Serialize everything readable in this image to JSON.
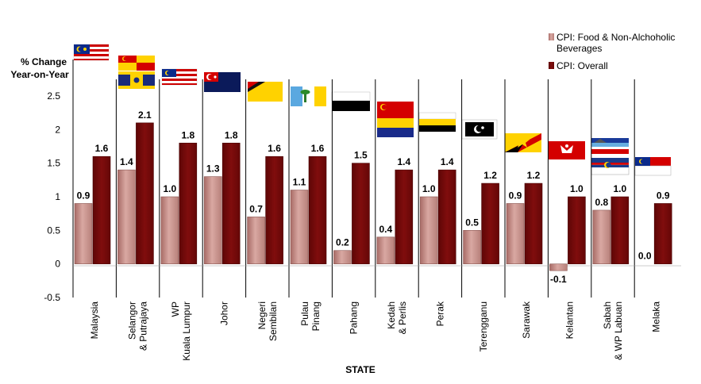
{
  "chart_data": {
    "type": "bar",
    "ylabel_lines": [
      "% Change",
      "Year-on-Year"
    ],
    "xlabel": "STATE",
    "ylim": [
      -0.5,
      2.5
    ],
    "yticks": [
      "2.5",
      "2",
      "1.5",
      "1",
      "0.5",
      "0",
      "-0.5"
    ],
    "legend_position": "top-right",
    "categories": [
      {
        "lines": [
          "Malaysia"
        ],
        "flag": "malaysia-flag"
      },
      {
        "lines": [
          "Selangor",
          "& Putrajaya"
        ],
        "flag": "selangor-putrajaya-flags"
      },
      {
        "lines": [
          "WP",
          "Kuala Lumpur"
        ],
        "flag": "wp-kuala-lumpur-flag"
      },
      {
        "lines": [
          "Johor"
        ],
        "flag": "johor-flag"
      },
      {
        "lines": [
          "Negeri",
          "Sembilan"
        ],
        "flag": "negeri-sembilan-flag"
      },
      {
        "lines": [
          "Pulau",
          "Pinang"
        ],
        "flag": "pulau-pinang-flag"
      },
      {
        "lines": [
          "Pahang"
        ],
        "flag": "pahang-flag"
      },
      {
        "lines": [
          "Kedah",
          "& Perlis"
        ],
        "flag": "kedah-perlis-flags"
      },
      {
        "lines": [
          "Perak"
        ],
        "flag": "perak-flag"
      },
      {
        "lines": [
          "Terengganu"
        ],
        "flag": "terengganu-flag"
      },
      {
        "lines": [
          "Sarawak"
        ],
        "flag": "sarawak-flag"
      },
      {
        "lines": [
          "Kelantan"
        ],
        "flag": "kelantan-flag"
      },
      {
        "lines": [
          "Sabah",
          "& WP Labuan"
        ],
        "flag": "sabah-labuan-flags"
      },
      {
        "lines": [
          "Melaka"
        ],
        "flag": "melaka-flag"
      }
    ],
    "series": [
      {
        "name": "CPI: Food & Non-Alchoholic Beverages",
        "legend_lines": [
          "CPI: Food & Non-Alchoholic",
          "Beverages"
        ],
        "color": "#c9908a",
        "values": [
          0.9,
          1.4,
          1.0,
          1.3,
          0.7,
          1.1,
          0.2,
          0.4,
          1.0,
          0.5,
          0.9,
          -0.1,
          0.8,
          0.0
        ],
        "labels": [
          "0.9",
          "1.4",
          "1.0",
          "1.3",
          "0.7",
          "1.1",
          "0.2",
          "0.4",
          "1.0",
          "0.5",
          "0.9",
          "-0.1",
          "0.8",
          "0.0"
        ]
      },
      {
        "name": "CPI: Overall",
        "legend_lines": [
          "CPI: Overall"
        ],
        "color": "#7a0b0b",
        "values": [
          1.6,
          2.1,
          1.8,
          1.8,
          1.6,
          1.6,
          1.5,
          1.4,
          1.4,
          1.2,
          1.2,
          1.0,
          1.0,
          0.9
        ],
        "labels": [
          "1.6",
          "2.1",
          "1.8",
          "1.8",
          "1.6",
          "1.6",
          "1.5",
          "1.4",
          "1.4",
          "1.2",
          "1.2",
          "1.0",
          "1.0",
          "0.9"
        ]
      }
    ]
  }
}
